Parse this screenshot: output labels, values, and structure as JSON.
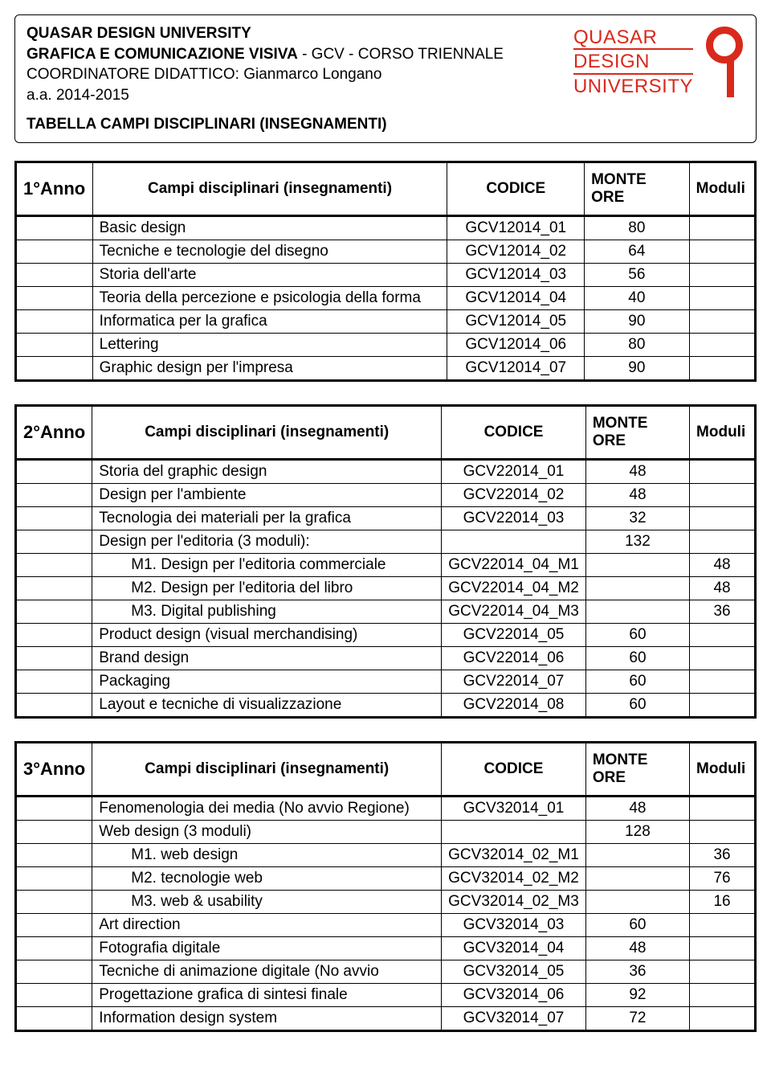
{
  "header": {
    "university": "QUASAR DESIGN UNIVERSITY",
    "course_bold": "GRAFICA E COMUNICAZIONE VISIVA",
    "course_rest": " - GCV - CORSO TRIENNALE",
    "coordinator": "COORDINATORE DIDATTICO: Gianmarco Longano",
    "academic_year": "a.a. 2014-2015",
    "table_title": "TABELLA CAMPI DISCIPLINARI (INSEGNAMENTI)",
    "logo": {
      "line1": "QUASAR",
      "line2": "DESIGN",
      "line3": "UNIVERSITY",
      "color": "#d9291c"
    }
  },
  "column_labels": {
    "campi": "Campi disciplinari (insegnamenti)",
    "codice": "CODICE",
    "monte": "MONTE ORE",
    "moduli": "Moduli"
  },
  "years": [
    {
      "label": "1°Anno",
      "rows": [
        {
          "name": "Basic design",
          "code": "GCV12014_01",
          "hours": "80",
          "mod": ""
        },
        {
          "name": "Tecniche e tecnologie del disegno",
          "code": "GCV12014_02",
          "hours": "64",
          "mod": ""
        },
        {
          "name": "Storia dell'arte",
          "code": "GCV12014_03",
          "hours": "56",
          "mod": ""
        },
        {
          "name": "Teoria della percezione e psicologia della forma",
          "code": "GCV12014_04",
          "hours": "40",
          "mod": ""
        },
        {
          "name": "Informatica per la grafica",
          "code": "GCV12014_05",
          "hours": "90",
          "mod": ""
        },
        {
          "name": "Lettering",
          "code": "GCV12014_06",
          "hours": "80",
          "mod": ""
        },
        {
          "name": "Graphic design per l'impresa",
          "code": "GCV12014_07",
          "hours": "90",
          "mod": ""
        }
      ]
    },
    {
      "label": "2°Anno",
      "rows": [
        {
          "name": "Storia del graphic design",
          "code": "GCV22014_01",
          "hours": "48",
          "mod": ""
        },
        {
          "name": "Design per l'ambiente",
          "code": "GCV22014_02",
          "hours": "48",
          "mod": ""
        },
        {
          "name": "Tecnologia dei materiali per la grafica",
          "code": "GCV22014_03",
          "hours": "32",
          "mod": ""
        },
        {
          "name": "Design per l'editoria (3 moduli):",
          "code": "",
          "hours": "132",
          "mod": ""
        },
        {
          "indent": true,
          "name": "M1. Design per l'editoria commerciale",
          "code": "GCV22014_04_M1",
          "hours": "",
          "mod": "48"
        },
        {
          "indent": true,
          "name": "M2. Design per l'editoria del libro",
          "code": "GCV22014_04_M2",
          "hours": "",
          "mod": "48"
        },
        {
          "indent": true,
          "name": "M3. Digital publishing",
          "code": "GCV22014_04_M3",
          "hours": "",
          "mod": "36"
        },
        {
          "name": "Product design (visual merchandising)",
          "code": "GCV22014_05",
          "hours": "60",
          "mod": ""
        },
        {
          "name": "Brand design",
          "code": "GCV22014_06",
          "hours": "60",
          "mod": ""
        },
        {
          "name": "Packaging",
          "code": "GCV22014_07",
          "hours": "60",
          "mod": ""
        },
        {
          "name": "Layout e tecniche di visualizzazione",
          "code": "GCV22014_08",
          "hours": "60",
          "mod": ""
        }
      ]
    },
    {
      "label": "3°Anno",
      "rows": [
        {
          "name": "Fenomenologia dei media (No avvio Regione)",
          "code": "GCV32014_01",
          "hours": "48",
          "mod": ""
        },
        {
          "name": "Web design (3 moduli)",
          "code": "",
          "hours": "128",
          "mod": ""
        },
        {
          "indent": true,
          "name": "M1. web design",
          "code": "GCV32014_02_M1",
          "hours": "",
          "mod": "36"
        },
        {
          "indent": true,
          "name": "M2. tecnologie web",
          "code": "GCV32014_02_M2",
          "hours": "",
          "mod": "76"
        },
        {
          "indent": true,
          "name": "M3. web & usability",
          "code": "GCV32014_02_M3",
          "hours": "",
          "mod": "16"
        },
        {
          "name": "Art direction",
          "code": "GCV32014_03",
          "hours": "60",
          "mod": ""
        },
        {
          "name": "Fotografia digitale",
          "code": "GCV32014_04",
          "hours": "48",
          "mod": ""
        },
        {
          "name": "Tecniche di animazione digitale (No avvio",
          "code": "GCV32014_05",
          "hours": "36",
          "mod": ""
        },
        {
          "name": "Progettazione grafica di sintesi finale",
          "code": "GCV32014_06",
          "hours": "92",
          "mod": ""
        },
        {
          "name": "Information design system",
          "code": "GCV32014_07",
          "hours": "72",
          "mod": ""
        }
      ]
    }
  ]
}
